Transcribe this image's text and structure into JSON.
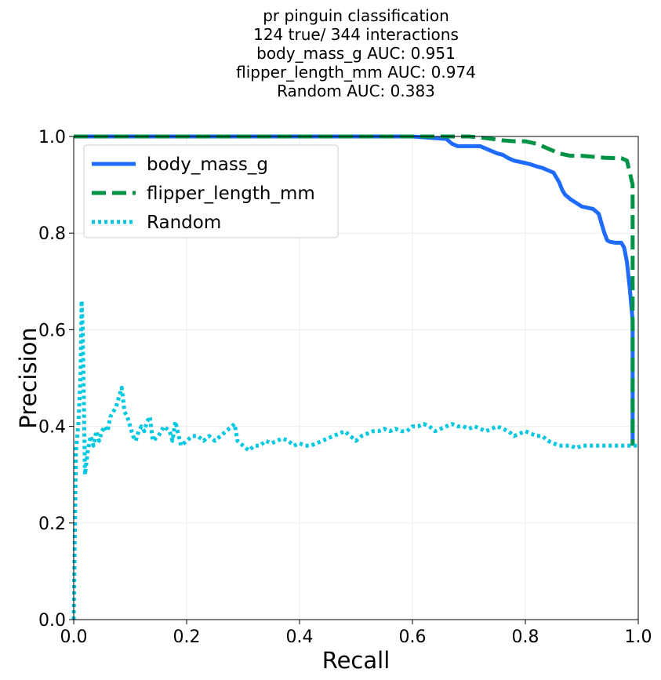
{
  "title_lines": [
    "pr pinguin classification",
    "124 true/ 344 interactions",
    "body_mass_g AUC: 0.951",
    "flipper_length_mm AUC: 0.974",
    "Random AUC: 0.383"
  ],
  "chart_data": {
    "type": "line",
    "xlabel": "Recall",
    "ylabel": "Precision",
    "xlim": [
      0.0,
      1.0
    ],
    "ylim": [
      0.0,
      1.0
    ],
    "xticks": [
      "0.0",
      "0.2",
      "0.4",
      "0.6",
      "0.8",
      "1.0"
    ],
    "yticks": [
      "0.0",
      "0.2",
      "0.4",
      "0.6",
      "0.8",
      "1.0"
    ],
    "grid": true,
    "legend_position": "top-left",
    "series": [
      {
        "name": "body_mass_g",
        "color": "#1f6bff",
        "style": "solid",
        "x": [
          0.0,
          0.6,
          0.66,
          0.67,
          0.68,
          0.7,
          0.72,
          0.73,
          0.75,
          0.76,
          0.77,
          0.78,
          0.8,
          0.81,
          0.82,
          0.83,
          0.84,
          0.85,
          0.855,
          0.86,
          0.865,
          0.87,
          0.88,
          0.9,
          0.92,
          0.93,
          0.935,
          0.94,
          0.945,
          0.95,
          0.96,
          0.97,
          0.975,
          0.98,
          0.985,
          0.99,
          0.99
        ],
        "y": [
          1.0,
          1.0,
          0.995,
          0.985,
          0.98,
          0.98,
          0.98,
          0.975,
          0.965,
          0.962,
          0.955,
          0.95,
          0.945,
          0.942,
          0.938,
          0.935,
          0.93,
          0.925,
          0.915,
          0.905,
          0.89,
          0.88,
          0.87,
          0.855,
          0.85,
          0.84,
          0.82,
          0.8,
          0.785,
          0.782,
          0.78,
          0.78,
          0.77,
          0.74,
          0.685,
          0.62,
          0.36
        ]
      },
      {
        "name": "flipper_length_mm",
        "color": "#009245",
        "style": "dashed",
        "x": [
          0.0,
          0.7,
          0.72,
          0.74,
          0.76,
          0.78,
          0.8,
          0.82,
          0.84,
          0.86,
          0.88,
          0.9,
          0.92,
          0.94,
          0.96,
          0.97,
          0.98,
          0.99,
          0.99,
          0.99
        ],
        "y": [
          1.0,
          1.0,
          0.998,
          0.995,
          0.992,
          0.99,
          0.99,
          0.985,
          0.975,
          0.965,
          0.96,
          0.96,
          0.958,
          0.956,
          0.955,
          0.955,
          0.95,
          0.9,
          0.88,
          0.36
        ]
      },
      {
        "name": "Random",
        "color": "#00c8e0",
        "style": "dotted",
        "x": [
          0.0,
          0.004,
          0.008,
          0.01,
          0.012,
          0.014,
          0.016,
          0.02,
          0.025,
          0.03,
          0.035,
          0.04,
          0.045,
          0.05,
          0.055,
          0.06,
          0.065,
          0.07,
          0.075,
          0.08,
          0.085,
          0.09,
          0.095,
          0.1,
          0.105,
          0.11,
          0.115,
          0.12,
          0.125,
          0.13,
          0.135,
          0.14,
          0.15,
          0.16,
          0.17,
          0.175,
          0.18,
          0.19,
          0.2,
          0.21,
          0.22,
          0.23,
          0.24,
          0.25,
          0.26,
          0.27,
          0.28,
          0.285,
          0.29,
          0.3,
          0.31,
          0.32,
          0.33,
          0.34,
          0.35,
          0.36,
          0.37,
          0.38,
          0.39,
          0.4,
          0.41,
          0.42,
          0.43,
          0.44,
          0.45,
          0.46,
          0.47,
          0.48,
          0.49,
          0.5,
          0.51,
          0.52,
          0.53,
          0.54,
          0.55,
          0.56,
          0.57,
          0.58,
          0.59,
          0.6,
          0.61,
          0.62,
          0.63,
          0.64,
          0.65,
          0.66,
          0.67,
          0.68,
          0.69,
          0.7,
          0.71,
          0.72,
          0.73,
          0.74,
          0.75,
          0.76,
          0.77,
          0.78,
          0.79,
          0.8,
          0.81,
          0.82,
          0.83,
          0.84,
          0.85,
          0.86,
          0.87,
          0.88,
          0.89,
          0.9,
          0.91,
          0.92,
          0.93,
          0.94,
          0.95,
          0.96,
          0.97,
          0.98,
          0.99,
          1.0
        ],
        "y": [
          0.0,
          0.35,
          0.4,
          0.45,
          0.5,
          0.66,
          0.6,
          0.3,
          0.35,
          0.38,
          0.36,
          0.39,
          0.37,
          0.39,
          0.4,
          0.39,
          0.42,
          0.43,
          0.44,
          0.46,
          0.48,
          0.43,
          0.42,
          0.4,
          0.38,
          0.37,
          0.39,
          0.4,
          0.39,
          0.41,
          0.42,
          0.37,
          0.38,
          0.4,
          0.39,
          0.37,
          0.41,
          0.36,
          0.37,
          0.38,
          0.38,
          0.37,
          0.38,
          0.37,
          0.38,
          0.39,
          0.4,
          0.405,
          0.37,
          0.36,
          0.35,
          0.36,
          0.36,
          0.37,
          0.365,
          0.37,
          0.375,
          0.37,
          0.36,
          0.365,
          0.36,
          0.36,
          0.365,
          0.37,
          0.375,
          0.38,
          0.385,
          0.39,
          0.38,
          0.37,
          0.38,
          0.385,
          0.39,
          0.39,
          0.395,
          0.39,
          0.395,
          0.39,
          0.39,
          0.4,
          0.4,
          0.405,
          0.4,
          0.39,
          0.395,
          0.4,
          0.405,
          0.4,
          0.4,
          0.395,
          0.4,
          0.395,
          0.39,
          0.395,
          0.4,
          0.395,
          0.39,
          0.38,
          0.385,
          0.39,
          0.385,
          0.38,
          0.38,
          0.37,
          0.365,
          0.36,
          0.36,
          0.36,
          0.355,
          0.36,
          0.36,
          0.36,
          0.36,
          0.36,
          0.36,
          0.36,
          0.36,
          0.36,
          0.36,
          0.36
        ]
      }
    ]
  }
}
